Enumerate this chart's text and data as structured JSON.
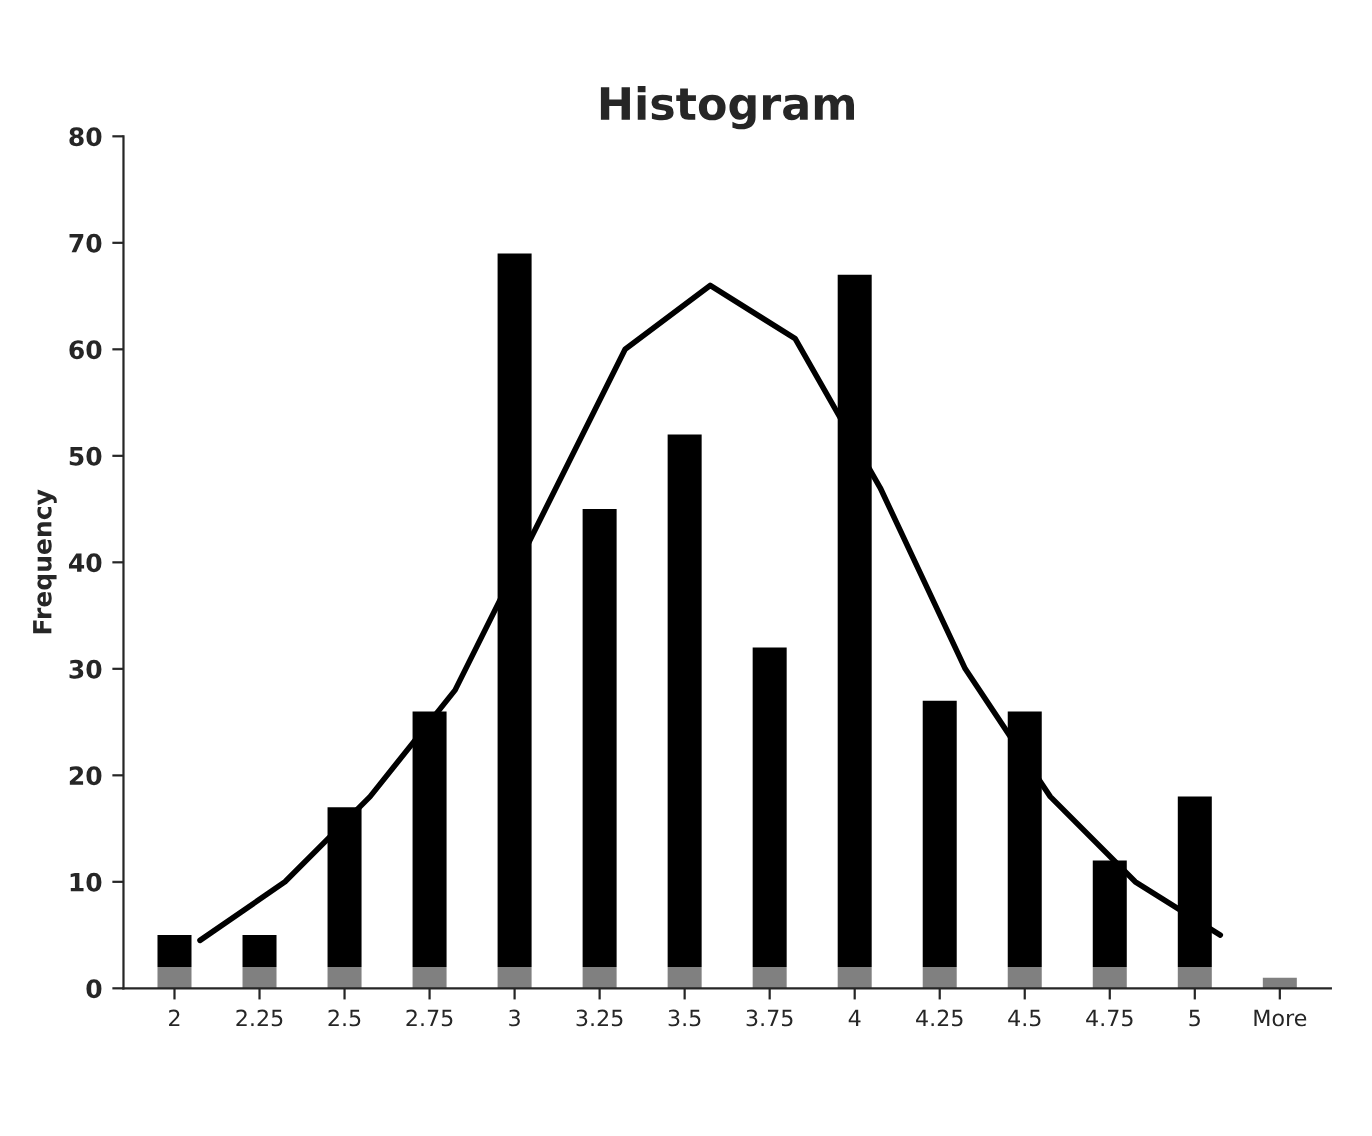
{
  "chart_data": {
    "type": "bar",
    "title": "Histogram",
    "ylabel": "Frequency",
    "categories": [
      "2",
      "2.25",
      "2.5",
      "2.75",
      "3",
      "3.25",
      "3.5",
      "3.75",
      "4",
      "4.25",
      "4.5",
      "4.75",
      "5",
      "More"
    ],
    "stacked": true,
    "ylim": [
      0,
      80
    ],
    "yticks": [
      0,
      10,
      20,
      30,
      40,
      50,
      60,
      70,
      80
    ],
    "grid": false,
    "legend": false,
    "series": [
      {
        "color": "#808080",
        "values": [
          2,
          2,
          2,
          2,
          2,
          2,
          2,
          2,
          2,
          2,
          2,
          2,
          2,
          1
        ]
      },
      {
        "color": "#000000",
        "values": [
          3,
          3,
          15,
          24,
          67,
          43,
          50,
          30,
          65,
          25,
          24,
          10,
          16,
          0
        ]
      },
      {
        "type": "line",
        "color": "#000000",
        "values": [
          4.5,
          10,
          18,
          28,
          44,
          60,
          66,
          61,
          47,
          30,
          18,
          10,
          5,
          null
        ]
      }
    ]
  }
}
